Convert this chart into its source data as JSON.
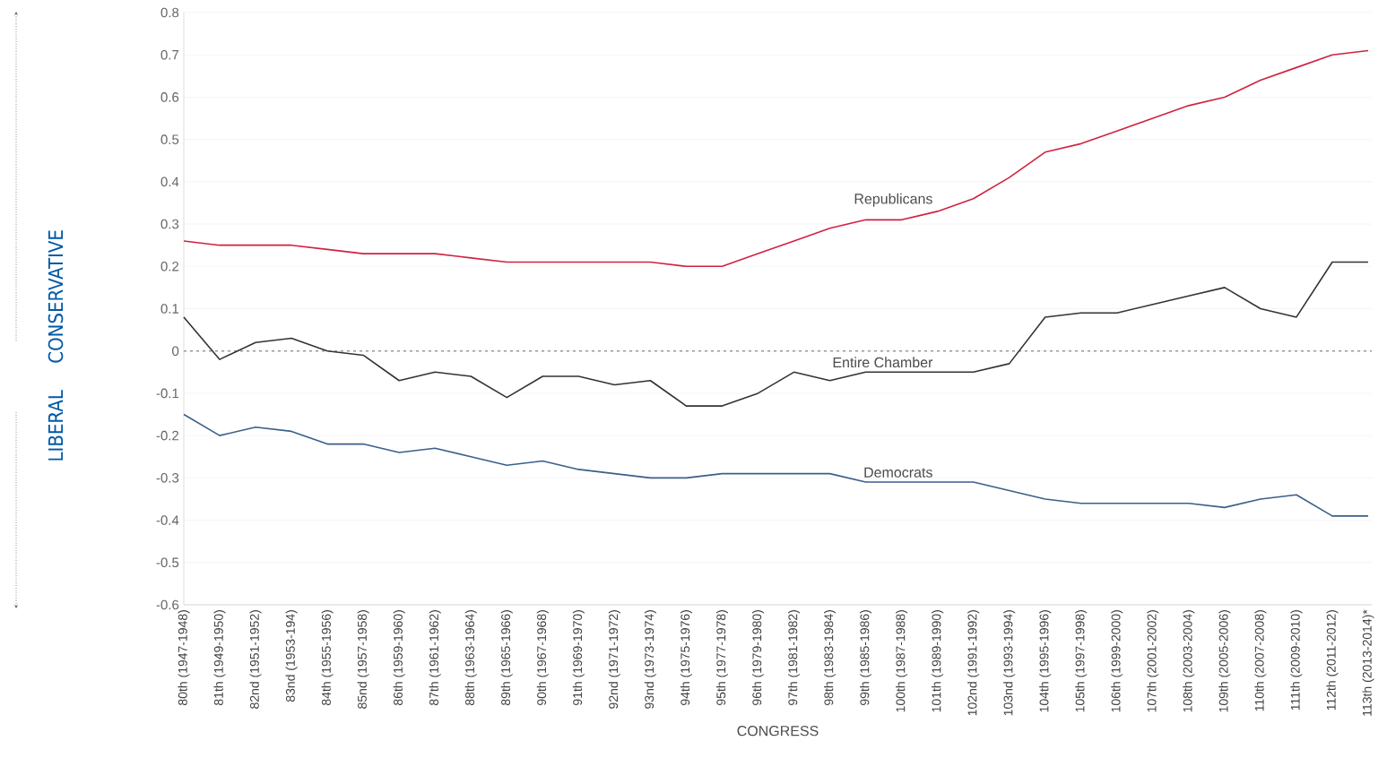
{
  "chart_data": {
    "type": "line",
    "xlabel": "CONGRESS",
    "categories": [
      "80th (1947-1948)",
      "81th (1949-1950)",
      "82nd (1951-1952)",
      "83nd (1953-194)",
      "84th (1955-1956)",
      "85nd (1957-1958)",
      "86th (1959-1960)",
      "87th (1961-1962)",
      "88th (1963-1964)",
      "89th (1965-1966)",
      "90th (1967-1968)",
      "91th (1969-1970)",
      "92nd (1971-1972)",
      "93nd (1973-1974)",
      "94th (1975-1976)",
      "95th (1977-1978)",
      "96th (1979-1980)",
      "97th (1981-1982)",
      "98th (1983-1984)",
      "99th (1985-1986)",
      "100th (1987-1988)",
      "101th (1989-1990)",
      "102nd (1991-1992)",
      "103nd (1993-1994)",
      "104th (1995-1996)",
      "105th (1997-1998)",
      "106th (1999-2000)",
      "107th (2001-2002)",
      "108th (2003-2004)",
      "109th (2005-2006)",
      "110th (2007-2008)",
      "111th (2009-2010)",
      "112th (2011-2012)",
      "113th (2013-2014)*"
    ],
    "series": [
      {
        "name": "Republicans",
        "color": "#d0223f",
        "values": [
          0.26,
          0.25,
          0.25,
          0.25,
          0.24,
          0.23,
          0.23,
          0.23,
          0.22,
          0.21,
          0.21,
          0.21,
          0.21,
          0.21,
          0.2,
          0.2,
          0.23,
          0.26,
          0.29,
          0.31,
          0.31,
          0.33,
          0.36,
          0.41,
          0.47,
          0.49,
          0.52,
          0.55,
          0.58,
          0.6,
          0.64,
          0.67,
          0.7,
          0.71
        ]
      },
      {
        "name": "Entire Chamber",
        "color": "#333333",
        "values": [
          0.08,
          -0.02,
          0.02,
          0.03,
          0.0,
          -0.01,
          -0.07,
          -0.05,
          -0.06,
          -0.11,
          -0.06,
          -0.06,
          -0.08,
          -0.07,
          -0.13,
          -0.13,
          -0.1,
          -0.05,
          -0.07,
          -0.05,
          -0.05,
          -0.05,
          -0.05,
          -0.03,
          0.08,
          0.09,
          0.09,
          0.11,
          0.13,
          0.15,
          0.1,
          0.08,
          0.21,
          0.21
        ]
      },
      {
        "name": "Democrats",
        "color": "#3a5f8a",
        "values": [
          -0.15,
          -0.2,
          -0.18,
          -0.19,
          -0.22,
          -0.22,
          -0.24,
          -0.23,
          -0.25,
          -0.27,
          -0.26,
          -0.28,
          -0.29,
          -0.3,
          -0.3,
          -0.29,
          -0.29,
          -0.29,
          -0.29,
          -0.31,
          -0.31,
          -0.31,
          -0.31,
          -0.33,
          -0.35,
          -0.36,
          -0.36,
          -0.36,
          -0.36,
          -0.37,
          -0.35,
          -0.34,
          -0.39,
          -0.39
        ]
      }
    ],
    "annotations": [
      "CONSERVATIVE",
      "LIBERAL"
    ],
    "ylim": [
      -0.6,
      0.8
    ],
    "yticks": [
      -0.6,
      -0.5,
      -0.4,
      -0.3,
      -0.2,
      -0.1,
      0,
      0.1,
      0.2,
      0.3,
      0.4,
      0.5,
      0.6,
      0.7,
      0.8
    ],
    "grid": "y",
    "ref_lines": [
      {
        "axis": "y",
        "value": 0,
        "color": "#999999",
        "line_style": "dashed"
      }
    ],
    "marker": "none",
    "line_style": "solid",
    "legend": false
  }
}
